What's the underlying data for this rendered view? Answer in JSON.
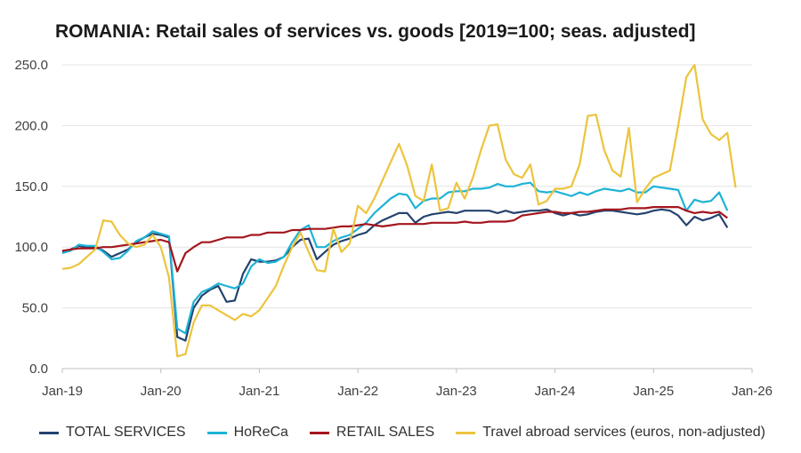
{
  "chart_data": {
    "type": "line",
    "title": "ROMANIA: Retail sales of services vs. goods [2019=100; seas. adjusted]",
    "ylim": [
      0,
      250
    ],
    "yticks": [
      "0.0",
      "50.0",
      "100.0",
      "150.0",
      "200.0",
      "250.0"
    ],
    "ytick_values": [
      0,
      50,
      100,
      150,
      200,
      250
    ],
    "xticks": [
      "Jan-19",
      "Jan-20",
      "Jan-21",
      "Jan-22",
      "Jan-23",
      "Jan-24",
      "Jan-25",
      "Jan-26"
    ],
    "xtick_months": [
      0,
      12,
      24,
      36,
      48,
      60,
      72,
      84
    ],
    "x_start": "Jan-19",
    "x_end": "Jan-26",
    "grid": "horizontal",
    "legend_position": "bottom",
    "series": [
      {
        "name": "TOTAL SERVICES",
        "color": "#24436e",
        "values": [
          96,
          98,
          101,
          100,
          100,
          97,
          92,
          95,
          98,
          104,
          108,
          111,
          110,
          108,
          26,
          23,
          50,
          60,
          65,
          68,
          55,
          56,
          78,
          90,
          88,
          88,
          89,
          92,
          100,
          106,
          107,
          90,
          96,
          102,
          105,
          107,
          110,
          112,
          118,
          122,
          125,
          128,
          128,
          120,
          125,
          127,
          128,
          129,
          128,
          130,
          130,
          130,
          130,
          128,
          130,
          128,
          129,
          130,
          130,
          131,
          128,
          126,
          128,
          126,
          127,
          129,
          130,
          130,
          129,
          128,
          127,
          128,
          130,
          131,
          130,
          126,
          118,
          125,
          122,
          124,
          127,
          116
        ]
      },
      {
        "name": "HoReCa",
        "color": "#1db3d6",
        "values": [
          95,
          97,
          102,
          101,
          101,
          96,
          90,
          91,
          97,
          105,
          108,
          113,
          111,
          109,
          33,
          29,
          55,
          63,
          66,
          70,
          68,
          66,
          70,
          84,
          90,
          87,
          88,
          92,
          104,
          114,
          118,
          100,
          100,
          105,
          108,
          110,
          115,
          120,
          128,
          134,
          140,
          144,
          143,
          132,
          138,
          140,
          140,
          145,
          146,
          146,
          148,
          148,
          149,
          152,
          150,
          150,
          152,
          153,
          146,
          145,
          146,
          144,
          142,
          145,
          143,
          146,
          148,
          147,
          146,
          148,
          145,
          145,
          150,
          149,
          148,
          147,
          130,
          139,
          137,
          138,
          145,
          130
        ]
      },
      {
        "name": "RETAIL SALES",
        "color": "#a3151d",
        "values": [
          97,
          98,
          99,
          99,
          99,
          100,
          100,
          101,
          102,
          103,
          104,
          105,
          106,
          104,
          80,
          95,
          100,
          104,
          104,
          106,
          108,
          108,
          108,
          110,
          110,
          112,
          112,
          112,
          114,
          114,
          115,
          115,
          115,
          116,
          117,
          117,
          118,
          119,
          118,
          117,
          118,
          119,
          119,
          119,
          119,
          120,
          120,
          120,
          120,
          121,
          120,
          120,
          121,
          121,
          121,
          122,
          126,
          127,
          128,
          129,
          129,
          128,
          128,
          129,
          129,
          130,
          131,
          131,
          131,
          132,
          132,
          132,
          133,
          133,
          133,
          133,
          130,
          128,
          129,
          128,
          129,
          124
        ]
      },
      {
        "name": "Travel abroad services (euros, non-adjusted)",
        "color": "#ecc43c",
        "values": [
          82,
          83,
          86,
          92,
          98,
          122,
          121,
          110,
          103,
          100,
          102,
          110,
          100,
          75,
          10,
          12,
          38,
          52,
          52,
          48,
          44,
          40,
          45,
          43,
          48,
          58,
          68,
          85,
          100,
          112,
          96,
          81,
          80,
          115,
          96,
          103,
          134,
          128,
          140,
          155,
          170,
          185,
          167,
          142,
          138,
          168,
          130,
          132,
          153,
          140,
          157,
          180,
          200,
          201,
          172,
          160,
          157,
          168,
          135,
          138,
          148,
          148,
          150,
          168,
          208,
          209,
          180,
          163,
          158,
          198,
          137,
          148,
          157,
          160,
          163,
          200,
          240,
          250,
          205,
          193,
          188,
          194,
          149
        ]
      }
    ]
  }
}
